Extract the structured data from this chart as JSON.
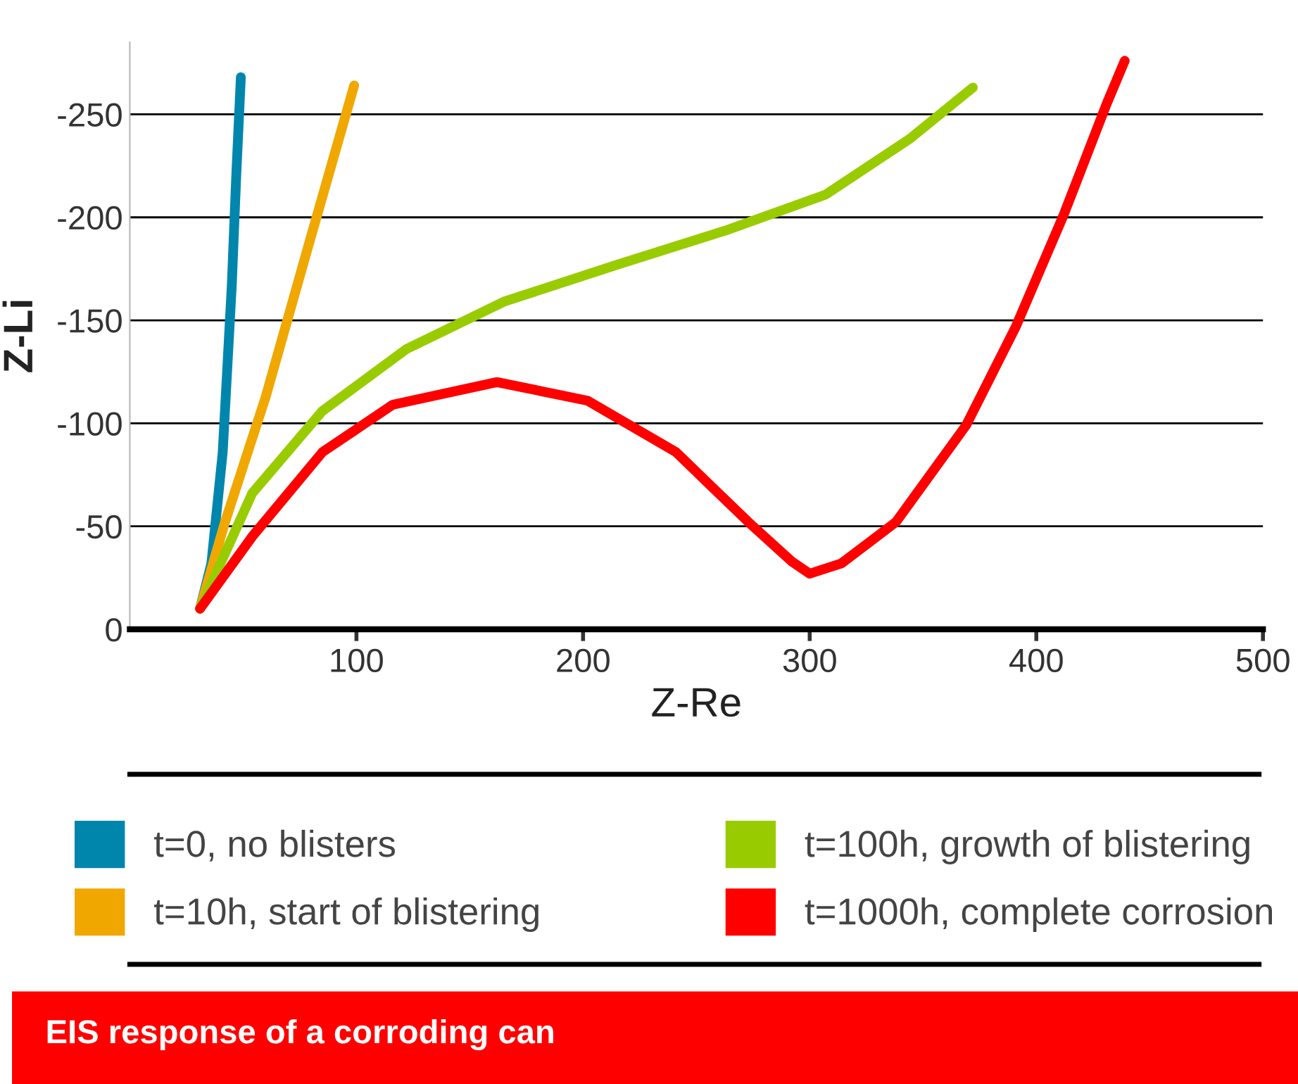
{
  "chart_data": {
    "type": "line",
    "title": "EIS response of a corroding can",
    "xlabel": "Z-Re",
    "ylabel": "Z-Li",
    "xlim": [
      0,
      500
    ],
    "xticks": [
      100,
      200,
      300,
      400,
      500
    ],
    "ylim": [
      0,
      -285
    ],
    "yticks": [
      0,
      -50,
      -100,
      -150,
      -200,
      -250
    ],
    "grid": "y",
    "legend": "bottom",
    "tick_labels": true,
    "series": [
      {
        "name": "t=0, no blisters",
        "color": "#0086ad",
        "x": [
          31,
          36,
          41,
          45,
          47,
          49
        ],
        "values": [
          -10,
          -32,
          -86,
          -167,
          -221,
          -268
        ]
      },
      {
        "name": "t=10h, start of blistering",
        "color": "#f0a800",
        "x": [
          31,
          42,
          60,
          79,
          99
        ],
        "values": [
          -10,
          -52,
          -113,
          -187,
          -264
        ]
      },
      {
        "name": "t=100h, growth of blistering",
        "color": "#99cc00",
        "x": [
          31,
          54,
          85,
          122,
          165,
          215,
          264,
          307,
          344,
          372
        ],
        "values": [
          -10,
          -66,
          -106,
          -136,
          -159,
          -177,
          -194,
          -211,
          -238,
          -263
        ]
      },
      {
        "name": "t=1000h, complete corrosion",
        "color": "#ff0000",
        "x": [
          31,
          54,
          85,
          116,
          162,
          202,
          241,
          273,
          292,
          300,
          314,
          338,
          369,
          391,
          412,
          431,
          439
        ],
        "values": [
          -10,
          -45,
          -86,
          -109,
          -120,
          -111,
          -86,
          -52,
          -33,
          -27,
          -32,
          -52,
          -99,
          -147,
          -201,
          -255,
          -276
        ]
      }
    ]
  }
}
